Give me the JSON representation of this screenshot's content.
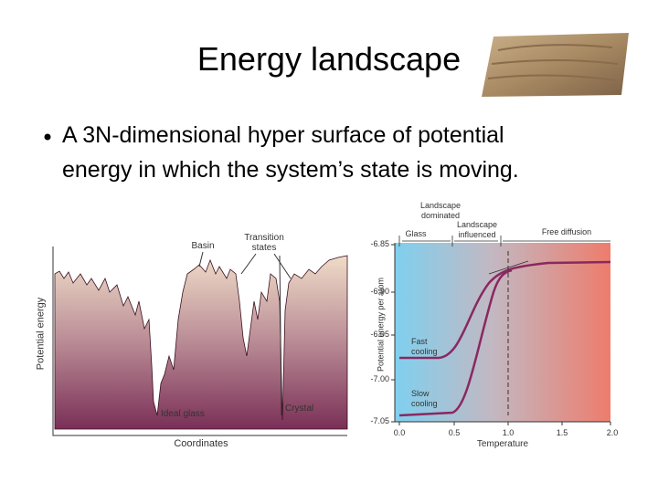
{
  "header": {
    "title": "Energy landscape"
  },
  "bullet": {
    "lines": [
      "A 3N-dimensional hyper surface of potential",
      "energy in which the system’s state is moving."
    ]
  },
  "left_figure": {
    "y_label": "Potential energy",
    "x_label": "Coordinates",
    "labels": [
      "Basin",
      "Transition states",
      "Ideal glass",
      "Crystal"
    ]
  },
  "right_figure": {
    "y_label": "Potential energy per atom",
    "x_label": "Temperature",
    "yticks": [
      "-6.85",
      "-6.90",
      "-6.95",
      "-7.00",
      "-7.05"
    ],
    "xticks": [
      "0.0",
      "0.5",
      "1.0",
      "1.5",
      "2.0"
    ],
    "regions": [
      "Landscape dominated",
      "Glass",
      "Landscape influenced",
      "Free diffusion"
    ],
    "curves": [
      "Fast cooling",
      "Slow cooling"
    ]
  }
}
